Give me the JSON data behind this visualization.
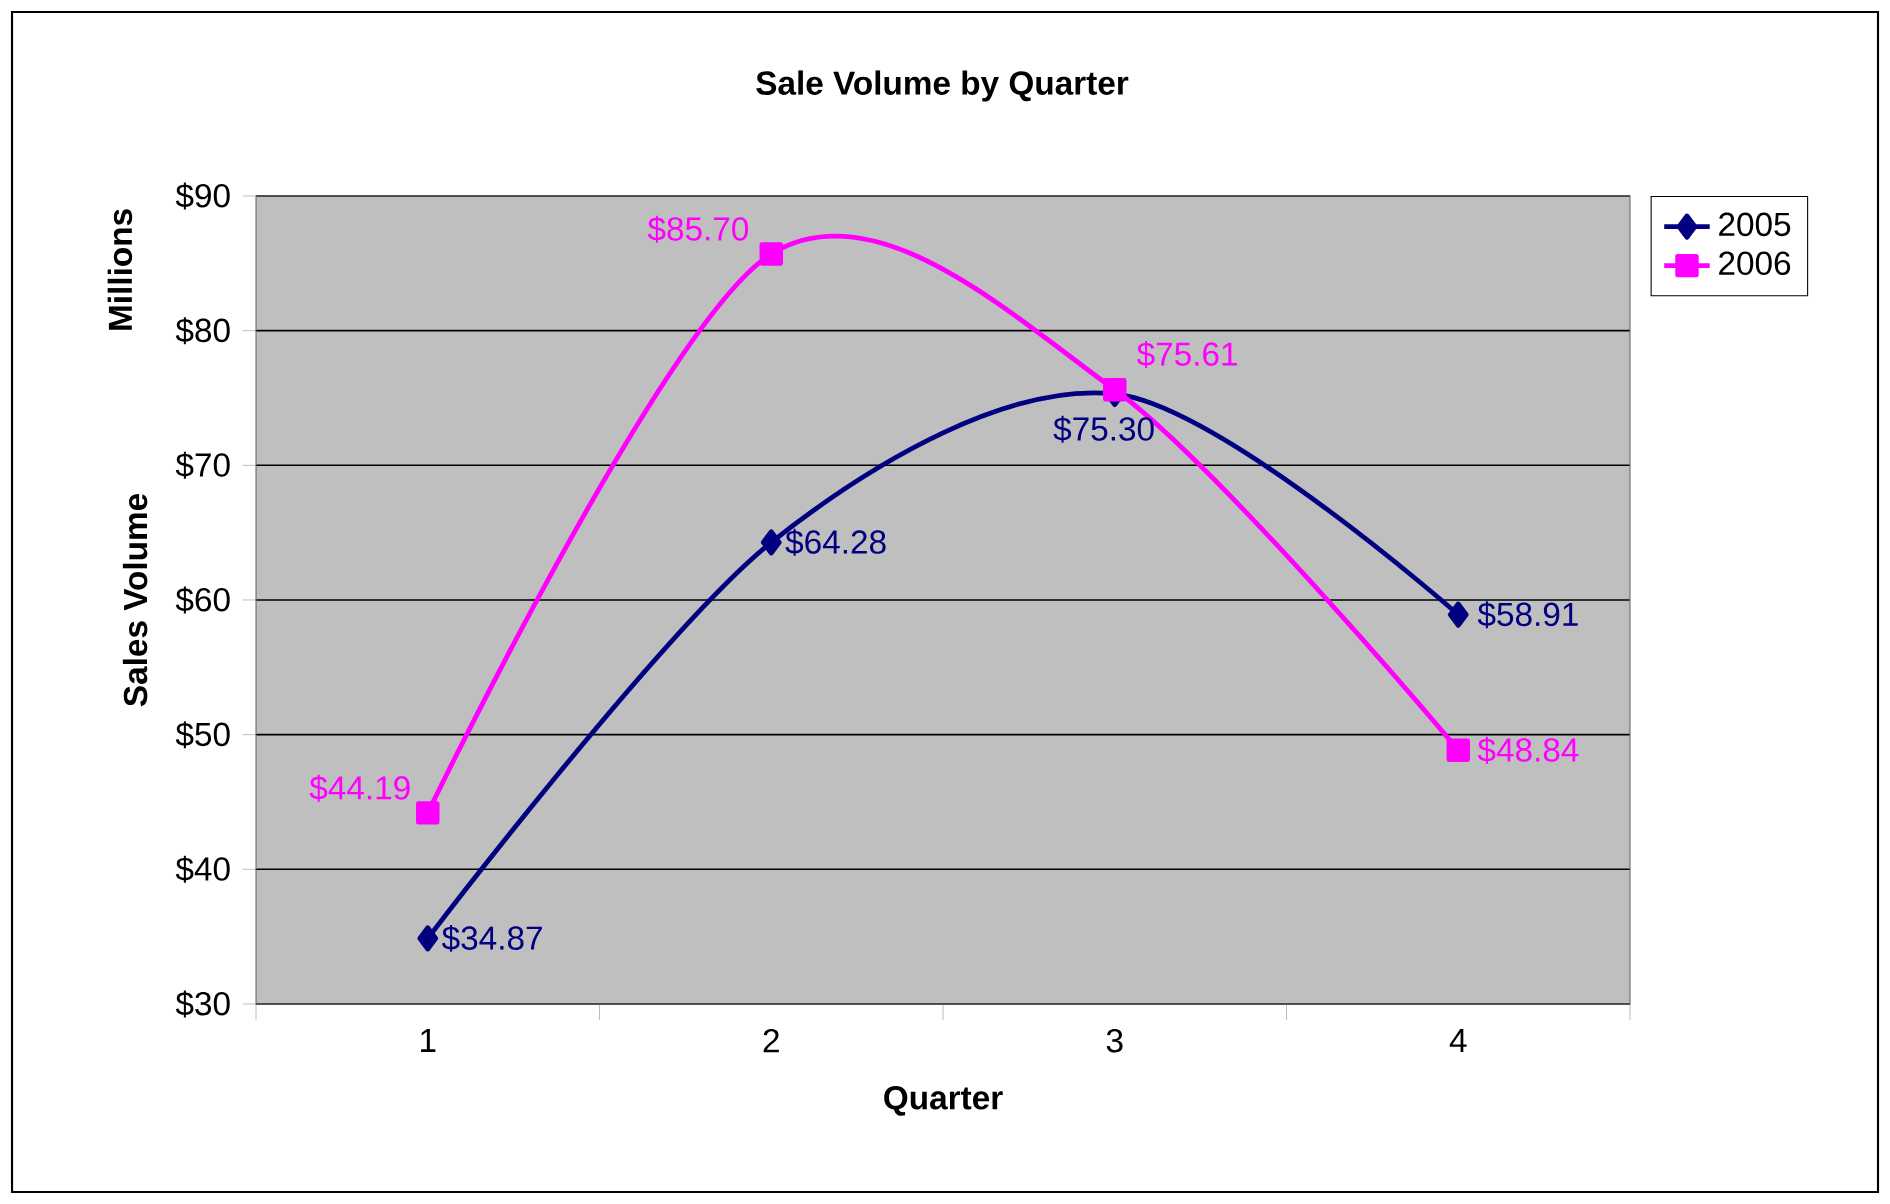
{
  "chart_data": {
    "type": "line",
    "title": "Sale Volume by Quarter",
    "xlabel": "Quarter",
    "ylabel": "Sales Volume",
    "annotations": [
      "Millions"
    ],
    "categories": [
      "1",
      "2",
      "3",
      "4"
    ],
    "series": [
      {
        "name": "2005",
        "color": "#000080",
        "marker": "diamond",
        "values": [
          34.87,
          64.28,
          75.3,
          58.91
        ],
        "value_labels": [
          "$34.87",
          "$64.28",
          "$75.30",
          "$58.91"
        ]
      },
      {
        "name": "2006",
        "color": "#ff00ff",
        "marker": "square",
        "values": [
          44.19,
          85.7,
          75.61,
          48.84
        ],
        "value_labels": [
          "$44.19",
          "$85.70",
          "$75.61",
          "$48.84"
        ]
      }
    ],
    "ylim": [
      30,
      90
    ],
    "yticks": [
      {
        "value": 30,
        "label": "$30"
      },
      {
        "value": 40,
        "label": "$40"
      },
      {
        "value": 50,
        "label": "$50"
      },
      {
        "value": 60,
        "label": "$60"
      },
      {
        "value": 70,
        "label": "$70"
      },
      {
        "value": 80,
        "label": "$80"
      },
      {
        "value": 90,
        "label": "$90"
      }
    ],
    "grid": "y",
    "legend": "right",
    "line_style": "solid"
  }
}
